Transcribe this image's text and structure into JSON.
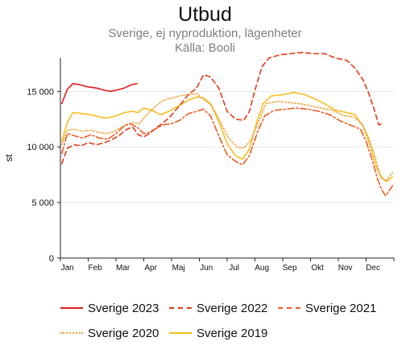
{
  "chart_data": {
    "type": "line",
    "title": "Utbud",
    "subtitle_lines": [
      "Sverige, ej nyproduktion, lägenheter",
      "Källa: Booli"
    ],
    "xlabel": "",
    "ylabel": "st",
    "ylim": [
      0,
      18000
    ],
    "xlim": [
      0,
      12
    ],
    "y_ticks": [
      {
        "value": 0,
        "label": "0"
      },
      {
        "value": 5000,
        "label": "5 000"
      },
      {
        "value": 10000,
        "label": "10 000"
      },
      {
        "value": 15000,
        "label": "15 000"
      }
    ],
    "x_ticks": [
      {
        "value": 0.25,
        "label": "Jan"
      },
      {
        "value": 1.25,
        "label": "Feb"
      },
      {
        "value": 2.25,
        "label": "Mar"
      },
      {
        "value": 3.25,
        "label": "Apr"
      },
      {
        "value": 4.25,
        "label": "Maj"
      },
      {
        "value": 5.25,
        "label": "Jun"
      },
      {
        "value": 6.25,
        "label": "Jul"
      },
      {
        "value": 7.25,
        "label": "Aug"
      },
      {
        "value": 8.25,
        "label": "Sep"
      },
      {
        "value": 9.25,
        "label": "Okt"
      },
      {
        "value": 10.25,
        "label": "Nov"
      },
      {
        "value": 11.25,
        "label": "Dec"
      }
    ],
    "grid": "horizontal",
    "legend_position": "bottom",
    "series": [
      {
        "name": "Sverige 2023",
        "color": "#e21d1d",
        "dash": "solid",
        "points": [
          [
            0.05,
            13900
          ],
          [
            0.25,
            15200
          ],
          [
            0.45,
            15700
          ],
          [
            0.7,
            15600
          ],
          [
            1.0,
            15400
          ],
          [
            1.3,
            15300
          ],
          [
            1.6,
            15100
          ],
          [
            1.8,
            15000
          ],
          [
            2.0,
            15100
          ],
          [
            2.3,
            15300
          ],
          [
            2.55,
            15600
          ],
          [
            2.75,
            15700
          ]
        ]
      },
      {
        "name": "Sverige 2022",
        "color": "#e23a1a",
        "dash": "dashed",
        "points": [
          [
            0.05,
            8500
          ],
          [
            0.25,
            9900
          ],
          [
            0.5,
            10200
          ],
          [
            0.75,
            10100
          ],
          [
            1.0,
            10400
          ],
          [
            1.3,
            10200
          ],
          [
            1.6,
            10400
          ],
          [
            1.8,
            10600
          ],
          [
            2.1,
            11000
          ],
          [
            2.4,
            11600
          ],
          [
            2.6,
            11800
          ],
          [
            2.8,
            11100
          ],
          [
            3.0,
            10900
          ],
          [
            3.2,
            11200
          ],
          [
            3.5,
            11800
          ],
          [
            3.9,
            12600
          ],
          [
            4.25,
            13600
          ],
          [
            4.6,
            14700
          ],
          [
            4.9,
            15300
          ],
          [
            5.15,
            16500
          ],
          [
            5.4,
            16300
          ],
          [
            5.7,
            15300
          ],
          [
            6.0,
            13200
          ],
          [
            6.3,
            12500
          ],
          [
            6.6,
            12400
          ],
          [
            6.8,
            13200
          ],
          [
            7.0,
            15100
          ],
          [
            7.25,
            17200
          ],
          [
            7.5,
            18000
          ],
          [
            7.9,
            18300
          ],
          [
            8.3,
            18400
          ],
          [
            8.7,
            18500
          ],
          [
            9.1,
            18400
          ],
          [
            9.5,
            18400
          ],
          [
            9.9,
            18000
          ],
          [
            10.3,
            17800
          ],
          [
            10.6,
            17100
          ],
          [
            10.9,
            16000
          ],
          [
            11.1,
            14800
          ],
          [
            11.3,
            13300
          ],
          [
            11.45,
            12000
          ],
          [
            11.65,
            12100
          ]
        ]
      },
      {
        "name": "Sverige 2021",
        "color": "#f15a24",
        "dash": "dashdot",
        "points": [
          [
            0.05,
            9400
          ],
          [
            0.25,
            11200
          ],
          [
            0.5,
            11000
          ],
          [
            0.8,
            10800
          ],
          [
            1.1,
            11100
          ],
          [
            1.4,
            10800
          ],
          [
            1.7,
            10700
          ],
          [
            2.0,
            11200
          ],
          [
            2.3,
            11900
          ],
          [
            2.5,
            12100
          ],
          [
            2.75,
            11800
          ],
          [
            3.0,
            11200
          ],
          [
            3.2,
            11300
          ],
          [
            3.4,
            11600
          ],
          [
            3.7,
            12000
          ],
          [
            4.0,
            12100
          ],
          [
            4.3,
            12400
          ],
          [
            4.6,
            13000
          ],
          [
            4.9,
            13200
          ],
          [
            5.15,
            13400
          ],
          [
            5.4,
            12800
          ],
          [
            5.7,
            11000
          ],
          [
            6.0,
            9300
          ],
          [
            6.3,
            8700
          ],
          [
            6.55,
            8400
          ],
          [
            6.8,
            9200
          ],
          [
            7.1,
            11400
          ],
          [
            7.35,
            12800
          ],
          [
            7.7,
            13300
          ],
          [
            8.1,
            13400
          ],
          [
            8.5,
            13500
          ],
          [
            8.9,
            13400
          ],
          [
            9.3,
            13200
          ],
          [
            9.7,
            12900
          ],
          [
            10.1,
            12300
          ],
          [
            10.5,
            11900
          ],
          [
            10.8,
            11600
          ],
          [
            11.0,
            10500
          ],
          [
            11.2,
            9000
          ],
          [
            11.4,
            7200
          ],
          [
            11.55,
            6200
          ],
          [
            11.7,
            5600
          ],
          [
            11.95,
            6500
          ]
        ]
      },
      {
        "name": "Sverige 2020",
        "color": "#f0a640",
        "dash": "dotted",
        "points": [
          [
            0.05,
            10200
          ],
          [
            0.25,
            11500
          ],
          [
            0.5,
            11600
          ],
          [
            0.8,
            11400
          ],
          [
            1.1,
            11500
          ],
          [
            1.4,
            11300
          ],
          [
            1.7,
            11200
          ],
          [
            2.0,
            11500
          ],
          [
            2.3,
            11900
          ],
          [
            2.6,
            12200
          ],
          [
            2.85,
            12100
          ],
          [
            3.1,
            12900
          ],
          [
            3.4,
            13600
          ],
          [
            3.7,
            14200
          ],
          [
            4.0,
            14400
          ],
          [
            4.3,
            14600
          ],
          [
            4.6,
            14700
          ],
          [
            4.9,
            14800
          ],
          [
            5.15,
            14300
          ],
          [
            5.45,
            13700
          ],
          [
            5.75,
            12300
          ],
          [
            6.05,
            10800
          ],
          [
            6.35,
            10000
          ],
          [
            6.6,
            9900
          ],
          [
            6.85,
            10600
          ],
          [
            7.1,
            12100
          ],
          [
            7.4,
            13900
          ],
          [
            7.8,
            14100
          ],
          [
            8.2,
            14000
          ],
          [
            8.6,
            13900
          ],
          [
            9.0,
            13700
          ],
          [
            9.4,
            13500
          ],
          [
            9.8,
            13300
          ],
          [
            10.2,
            12800
          ],
          [
            10.55,
            12700
          ],
          [
            10.85,
            12100
          ],
          [
            11.1,
            10800
          ],
          [
            11.3,
            9300
          ],
          [
            11.5,
            7500
          ],
          [
            11.7,
            6900
          ],
          [
            11.95,
            7700
          ]
        ]
      },
      {
        "name": "Sverige 2019",
        "color": "#f7be1e",
        "dash": "solid",
        "points": [
          [
            0.05,
            10500
          ],
          [
            0.25,
            12200
          ],
          [
            0.45,
            13100
          ],
          [
            0.8,
            13000
          ],
          [
            1.1,
            12900
          ],
          [
            1.4,
            12700
          ],
          [
            1.7,
            12600
          ],
          [
            2.0,
            12800
          ],
          [
            2.3,
            13100
          ],
          [
            2.6,
            13200
          ],
          [
            2.8,
            13100
          ],
          [
            3.0,
            13500
          ],
          [
            3.3,
            13300
          ],
          [
            3.6,
            12900
          ],
          [
            3.9,
            13200
          ],
          [
            4.25,
            13700
          ],
          [
            4.6,
            14200
          ],
          [
            4.9,
            14500
          ],
          [
            5.15,
            14400
          ],
          [
            5.4,
            13900
          ],
          [
            5.7,
            12300
          ],
          [
            6.0,
            10300
          ],
          [
            6.3,
            9200
          ],
          [
            6.55,
            8900
          ],
          [
            6.8,
            9800
          ],
          [
            7.05,
            12100
          ],
          [
            7.3,
            13900
          ],
          [
            7.6,
            14600
          ],
          [
            8.0,
            14700
          ],
          [
            8.4,
            14900
          ],
          [
            8.8,
            14700
          ],
          [
            9.1,
            14400
          ],
          [
            9.5,
            13900
          ],
          [
            9.9,
            13300
          ],
          [
            10.3,
            13100
          ],
          [
            10.6,
            12900
          ],
          [
            10.9,
            11800
          ],
          [
            11.15,
            10100
          ],
          [
            11.35,
            8300
          ],
          [
            11.55,
            7200
          ],
          [
            11.75,
            6900
          ],
          [
            11.95,
            7300
          ]
        ]
      }
    ]
  }
}
